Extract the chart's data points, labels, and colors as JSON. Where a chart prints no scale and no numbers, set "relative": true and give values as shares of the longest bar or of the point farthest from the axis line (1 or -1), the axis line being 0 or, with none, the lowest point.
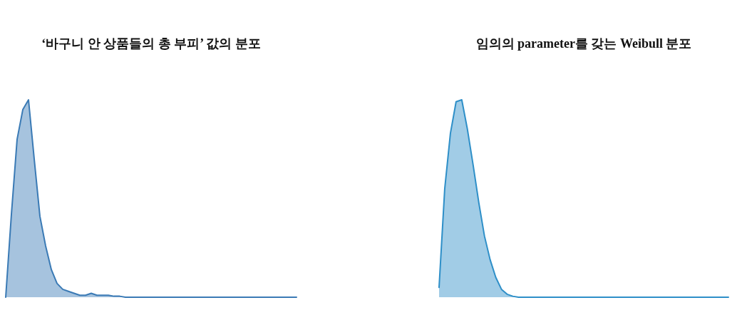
{
  "chart_data": [
    {
      "type": "area",
      "title": "‘바구니 안 상품들의 총 부피’ 값의 분포",
      "relative": true,
      "categories": [
        null,
        null,
        null,
        null,
        null,
        null,
        null,
        null,
        null,
        null,
        null,
        null,
        null,
        null,
        null,
        null,
        null,
        null,
        null,
        null,
        null,
        null,
        null,
        null,
        null,
        null,
        null,
        null,
        null,
        null,
        null,
        null,
        null,
        null,
        null,
        null,
        null,
        null,
        null,
        null,
        null,
        null,
        null,
        null,
        null,
        null,
        null,
        null,
        null,
        null,
        null,
        null
      ],
      "series": [
        {
          "color": "#3a7ab5",
          "values": [
            0,
            0.42,
            0.8,
            0.95,
            1.0,
            0.7,
            0.41,
            0.26,
            0.14,
            0.07,
            0.04,
            0.03,
            0.02,
            0.01,
            0.01,
            0.02,
            0.01,
            0.01,
            0.01,
            0.005,
            0.005,
            0,
            0,
            0,
            0,
            0,
            0,
            0,
            0,
            0,
            0,
            0,
            0,
            0,
            0,
            0,
            0,
            0,
            0,
            0,
            0,
            0,
            0,
            0,
            0,
            0,
            0,
            0,
            0,
            0,
            0,
            0
          ]
        }
      ]
    },
    {
      "type": "area",
      "title": "임의의 parameter를 갖는 Weibull 분포",
      "relative": true,
      "categories": [
        null,
        null,
        null,
        null,
        null,
        null,
        null,
        null,
        null,
        null,
        null,
        null,
        null,
        null,
        null,
        null,
        null,
        null,
        null,
        null,
        null,
        null,
        null,
        null,
        null,
        null,
        null,
        null,
        null,
        null,
        null,
        null,
        null,
        null,
        null,
        null,
        null,
        null,
        null,
        null,
        null,
        null,
        null,
        null,
        null,
        null,
        null,
        null,
        null,
        null,
        null,
        null
      ],
      "series": [
        {
          "color": "#2e8fc8",
          "values": [
            0.05,
            0.55,
            0.83,
            0.99,
            1.0,
            0.85,
            0.67,
            0.48,
            0.31,
            0.19,
            0.1,
            0.04,
            0.015,
            0.005,
            0,
            0,
            0,
            0,
            0,
            0,
            0,
            0,
            0,
            0,
            0,
            0,
            0,
            0,
            0,
            0,
            0,
            0,
            0,
            0,
            0,
            0,
            0,
            0,
            0,
            0,
            0,
            0,
            0,
            0,
            0,
            0,
            0,
            0,
            0,
            0,
            0,
            0
          ]
        }
      ]
    }
  ]
}
